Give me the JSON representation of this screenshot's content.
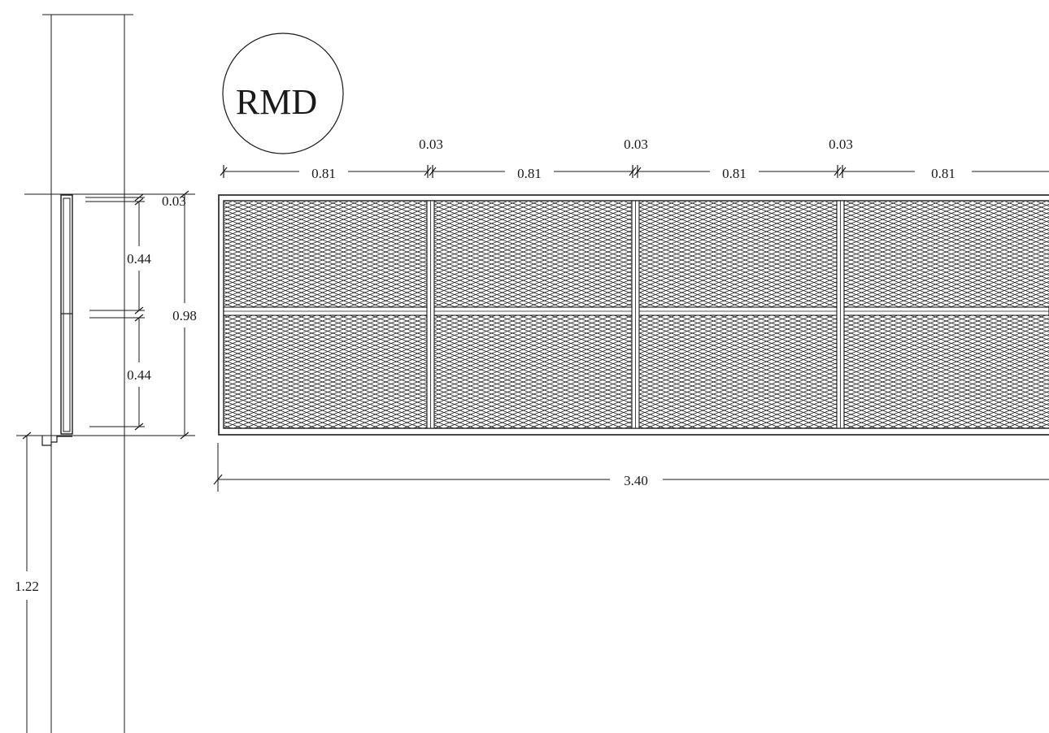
{
  "tag": {
    "label": "RMD"
  },
  "top_dimensions": {
    "panel_width": "0.81",
    "gap": "0.03"
  },
  "overall_width": {
    "label": "3.40"
  },
  "side_section": {
    "top_gap": "0.03",
    "upper_panel": "0.44",
    "lower_panel": "0.44",
    "total_height": "0.98",
    "mount_height": "1.22"
  },
  "colors": {
    "line": "#1a1a1a",
    "background": "#ffffff"
  }
}
